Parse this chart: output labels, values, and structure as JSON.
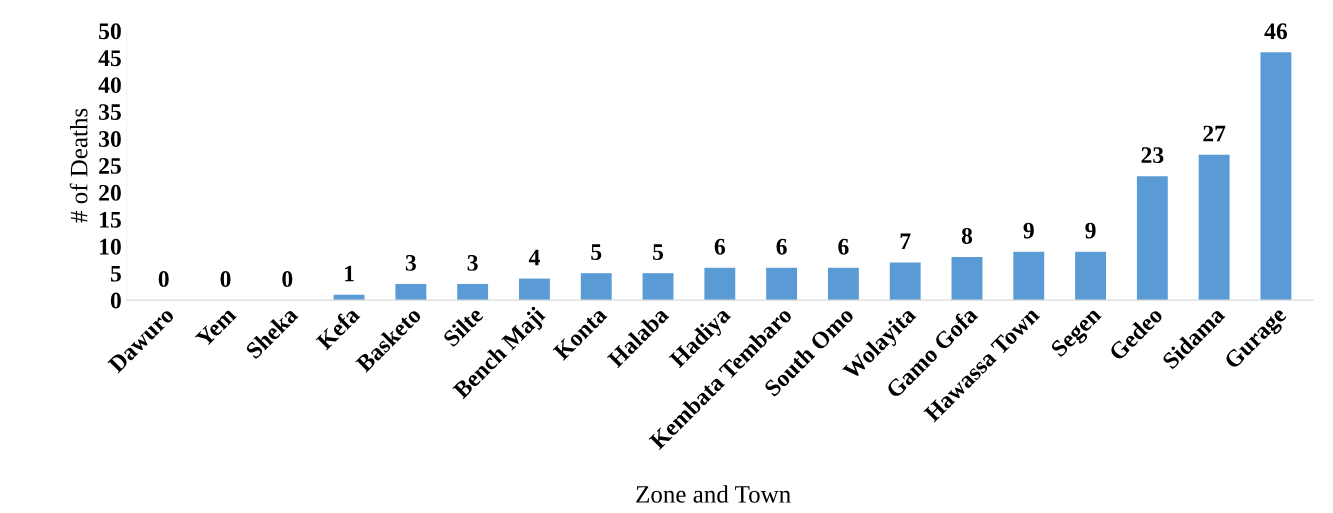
{
  "chart_data": {
    "type": "bar",
    "xlabel": "Zone and Town",
    "ylabel": "# of Deaths",
    "categories": [
      "Dawuro",
      "Yem",
      "Sheka",
      "Kefa",
      "Basketo",
      "Silte",
      "Bench Maji",
      "Konta",
      "Halaba",
      "Hadiya",
      "Kembata Tembaro",
      "South Omo",
      "Wolayita",
      "Gamo Gofa",
      "Hawassa Town",
      "Segen",
      "Gedeo",
      "Sidama",
      "Gurage"
    ],
    "values": [
      0,
      0,
      0,
      1,
      3,
      3,
      4,
      5,
      5,
      6,
      6,
      6,
      7,
      8,
      9,
      9,
      23,
      27,
      46
    ],
    "color": "#5b9bd5",
    "ylim": [
      0,
      50
    ],
    "yticks": [
      0,
      5,
      10,
      15,
      20,
      25,
      30,
      35,
      40,
      45,
      50
    ],
    "data_labels": true,
    "grid": false,
    "legend": false
  }
}
